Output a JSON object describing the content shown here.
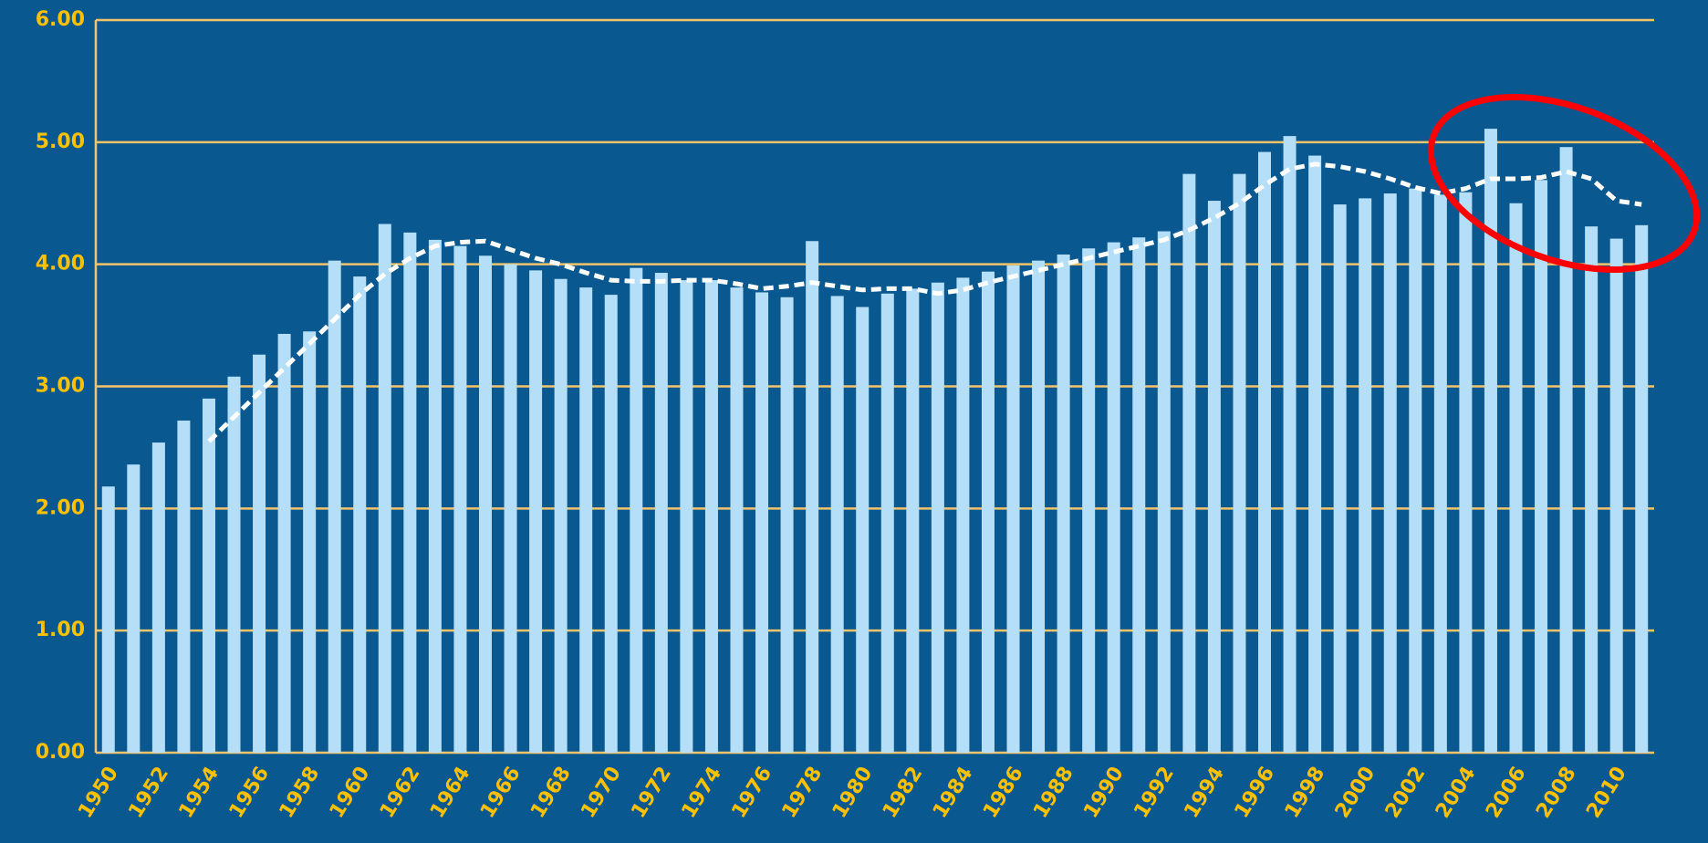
{
  "chart_data": {
    "type": "bar",
    "categories": [
      "1950",
      null,
      "1952",
      null,
      "1954",
      null,
      "1956",
      null,
      "1958",
      null,
      "1960",
      null,
      "1962",
      null,
      "1964",
      null,
      "1966",
      null,
      "1968",
      null,
      "1970",
      null,
      "1972",
      null,
      "1974",
      null,
      "1976",
      null,
      "1978",
      null,
      "1980",
      null,
      "1982",
      null,
      "1984",
      null,
      "1986",
      null,
      "1988",
      null,
      "1990",
      null,
      "1992",
      null,
      "1994",
      null,
      "1996",
      null,
      "1998",
      null,
      "2000",
      null,
      "2002",
      null,
      "2004",
      null,
      "2006",
      null,
      "2008",
      null,
      "2010",
      null
    ],
    "series": [
      {
        "type": "bar",
        "color": "#b5dff8",
        "values": [
          2.18,
          2.36,
          2.54,
          2.72,
          2.9,
          3.08,
          3.26,
          3.43,
          3.45,
          4.03,
          3.9,
          4.33,
          4.26,
          4.2,
          4.15,
          4.07,
          4.0,
          3.95,
          3.88,
          3.81,
          3.75,
          3.97,
          3.93,
          3.87,
          3.87,
          3.81,
          3.77,
          3.73,
          4.19,
          3.74,
          3.65,
          3.76,
          3.8,
          3.85,
          3.89,
          3.94,
          3.99,
          4.03,
          4.08,
          4.13,
          4.18,
          4.22,
          4.27,
          4.74,
          4.52,
          4.74,
          4.92,
          5.05,
          4.89,
          4.49,
          4.54,
          4.58,
          4.62,
          4.57,
          4.59,
          5.11,
          4.5,
          4.69,
          4.96,
          4.31,
          4.21,
          4.32
        ]
      },
      {
        "type": "line",
        "color": "#ffffff",
        "dashed": true,
        "values": [
          null,
          null,
          null,
          null,
          2.55,
          2.75,
          2.95,
          3.15,
          3.35,
          3.55,
          3.75,
          3.92,
          4.05,
          4.15,
          4.18,
          4.19,
          4.12,
          4.05,
          4.0,
          3.93,
          3.87,
          3.86,
          3.86,
          3.87,
          3.87,
          3.84,
          3.8,
          3.82,
          3.85,
          3.82,
          3.79,
          3.8,
          3.8,
          3.76,
          3.79,
          3.85,
          3.9,
          3.95,
          4.0,
          4.05,
          4.1,
          4.15,
          4.2,
          4.28,
          4.38,
          4.5,
          4.65,
          4.78,
          4.82,
          4.8,
          4.76,
          4.7,
          4.63,
          4.58,
          4.62,
          4.7,
          4.7,
          4.71,
          4.76,
          4.7,
          4.52,
          4.49
        ]
      }
    ],
    "ylim": [
      0,
      6
    ],
    "yticks": [
      {
        "value": 0,
        "label": "0.00"
      },
      {
        "value": 1,
        "label": "1.00"
      },
      {
        "value": 2,
        "label": "2.00"
      },
      {
        "value": 3,
        "label": "3.00"
      },
      {
        "value": 4,
        "label": "4.00"
      },
      {
        "value": 5,
        "label": "5.00"
      },
      {
        "value": 6,
        "label": "6.00"
      }
    ],
    "grid": true,
    "grid_color": "#f4c46a"
  }
}
